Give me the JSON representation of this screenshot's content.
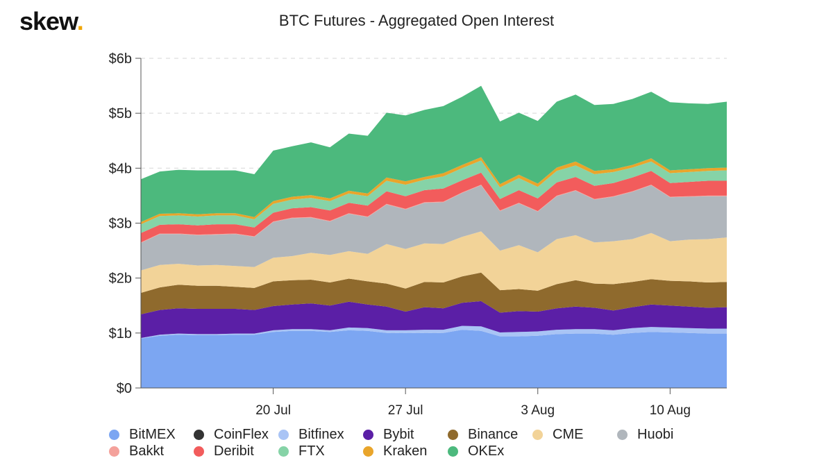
{
  "logo": {
    "text": "skew",
    "dot": "."
  },
  "chart_data": {
    "type": "area",
    "stacked": true,
    "title": "BTC Futures - Aggregated Open Interest",
    "xlabel": "",
    "ylabel": "",
    "ylim": [
      0,
      6
    ],
    "y_ticks": [
      "$0",
      "$1b",
      "$2b",
      "$3b",
      "$4b",
      "$5b",
      "$6b"
    ],
    "x_ticks": [
      {
        "label": "20 Jul",
        "index": 7
      },
      {
        "label": "27 Jul",
        "index": 14
      },
      {
        "label": "3 Aug",
        "index": 21
      },
      {
        "label": "10 Aug",
        "index": 28
      }
    ],
    "x": [
      "13 Jul",
      "14 Jul",
      "15 Jul",
      "16 Jul",
      "17 Jul",
      "18 Jul",
      "19 Jul",
      "20 Jul",
      "21 Jul",
      "22 Jul",
      "23 Jul",
      "24 Jul",
      "25 Jul",
      "26 Jul",
      "27 Jul",
      "28 Jul",
      "29 Jul",
      "30 Jul",
      "31 Jul",
      "1 Aug",
      "2 Aug",
      "3 Aug",
      "4 Aug",
      "5 Aug",
      "6 Aug",
      "7 Aug",
      "8 Aug",
      "9 Aug",
      "10 Aug",
      "11 Aug",
      "12 Aug",
      "13 Aug"
    ],
    "unit": "USD billions",
    "grid": true,
    "legend_position": "bottom",
    "series": [
      {
        "name": "BitMEX",
        "color": "#7ca6f2",
        "values": [
          0.9,
          0.95,
          0.97,
          0.96,
          0.96,
          0.97,
          0.97,
          1.02,
          1.04,
          1.04,
          1.02,
          1.05,
          1.04,
          1.0,
          1.0,
          1.0,
          1.0,
          1.06,
          1.04,
          0.94,
          0.94,
          0.95,
          0.98,
          0.99,
          0.99,
          0.97,
          1.0,
          1.02,
          1.01,
          1.0,
          0.99,
          0.99
        ]
      },
      {
        "name": "CoinFlex",
        "color": "#333333",
        "values": [
          0,
          0,
          0,
          0,
          0,
          0,
          0,
          0,
          0,
          0,
          0,
          0,
          0,
          0,
          0,
          0,
          0,
          0,
          0,
          0,
          0,
          0,
          0,
          0,
          0,
          0,
          0,
          0,
          0,
          0,
          0,
          0
        ]
      },
      {
        "name": "Bitfinex",
        "color": "#a9c4f5",
        "values": [
          0.01,
          0.02,
          0.02,
          0.02,
          0.02,
          0.02,
          0.02,
          0.03,
          0.03,
          0.03,
          0.03,
          0.05,
          0.05,
          0.05,
          0.05,
          0.06,
          0.06,
          0.07,
          0.08,
          0.07,
          0.08,
          0.08,
          0.08,
          0.08,
          0.08,
          0.08,
          0.09,
          0.09,
          0.09,
          0.09,
          0.09,
          0.09
        ]
      },
      {
        "name": "Bybit",
        "color": "#5b1fa6",
        "values": [
          0.43,
          0.45,
          0.46,
          0.46,
          0.46,
          0.45,
          0.43,
          0.44,
          0.45,
          0.47,
          0.45,
          0.47,
          0.43,
          0.43,
          0.34,
          0.41,
          0.39,
          0.42,
          0.46,
          0.36,
          0.38,
          0.36,
          0.39,
          0.41,
          0.39,
          0.36,
          0.38,
          0.41,
          0.4,
          0.39,
          0.38,
          0.39
        ]
      },
      {
        "name": "Binance",
        "color": "#8f6a2d",
        "values": [
          0.39,
          0.41,
          0.43,
          0.42,
          0.42,
          0.4,
          0.4,
          0.45,
          0.44,
          0.43,
          0.42,
          0.42,
          0.42,
          0.42,
          0.42,
          0.46,
          0.47,
          0.48,
          0.52,
          0.41,
          0.4,
          0.38,
          0.44,
          0.48,
          0.44,
          0.48,
          0.46,
          0.46,
          0.45,
          0.46,
          0.46,
          0.46
        ]
      },
      {
        "name": "CME",
        "color": "#f2d398",
        "values": [
          0.41,
          0.41,
          0.38,
          0.37,
          0.38,
          0.38,
          0.38,
          0.43,
          0.44,
          0.49,
          0.5,
          0.5,
          0.5,
          0.72,
          0.72,
          0.7,
          0.7,
          0.72,
          0.75,
          0.72,
          0.8,
          0.7,
          0.82,
          0.82,
          0.75,
          0.78,
          0.78,
          0.84,
          0.72,
          0.76,
          0.79,
          0.81
        ]
      },
      {
        "name": "Huobi",
        "color": "#b0b6bc",
        "values": [
          0.5,
          0.56,
          0.54,
          0.55,
          0.55,
          0.58,
          0.55,
          0.65,
          0.69,
          0.64,
          0.61,
          0.68,
          0.67,
          0.72,
          0.72,
          0.74,
          0.76,
          0.8,
          0.84,
          0.72,
          0.76,
          0.74,
          0.78,
          0.81,
          0.78,
          0.81,
          0.86,
          0.87,
          0.8,
          0.78,
          0.78,
          0.75
        ]
      },
      {
        "name": "Bakkt",
        "color": "#f4a19b",
        "values": [
          0.01,
          0.01,
          0.01,
          0.01,
          0.01,
          0.01,
          0.01,
          0.01,
          0.01,
          0.01,
          0.01,
          0.01,
          0.01,
          0.01,
          0.01,
          0.01,
          0.01,
          0.01,
          0.01,
          0.01,
          0.01,
          0.01,
          0.01,
          0.01,
          0.01,
          0.01,
          0.01,
          0.01,
          0.01,
          0.01,
          0.01,
          0.01
        ]
      },
      {
        "name": "Deribit",
        "color": "#f25c5c",
        "values": [
          0.17,
          0.16,
          0.17,
          0.17,
          0.18,
          0.17,
          0.16,
          0.16,
          0.17,
          0.18,
          0.19,
          0.19,
          0.2,
          0.23,
          0.23,
          0.22,
          0.24,
          0.22,
          0.22,
          0.21,
          0.23,
          0.23,
          0.24,
          0.24,
          0.24,
          0.24,
          0.25,
          0.25,
          0.25,
          0.26,
          0.27,
          0.27
        ]
      },
      {
        "name": "FTX",
        "color": "#86d3a7",
        "values": [
          0.16,
          0.16,
          0.16,
          0.16,
          0.16,
          0.16,
          0.15,
          0.16,
          0.16,
          0.17,
          0.17,
          0.17,
          0.17,
          0.19,
          0.21,
          0.19,
          0.22,
          0.22,
          0.22,
          0.21,
          0.22,
          0.21,
          0.21,
          0.21,
          0.21,
          0.2,
          0.18,
          0.17,
          0.18,
          0.18,
          0.18,
          0.19
        ]
      },
      {
        "name": "Kraken",
        "color": "#e9a52b",
        "values": [
          0.04,
          0.04,
          0.04,
          0.04,
          0.04,
          0.04,
          0.04,
          0.05,
          0.05,
          0.05,
          0.05,
          0.05,
          0.05,
          0.06,
          0.06,
          0.05,
          0.06,
          0.06,
          0.06,
          0.06,
          0.06,
          0.06,
          0.06,
          0.07,
          0.06,
          0.05,
          0.05,
          0.06,
          0.05,
          0.05,
          0.05,
          0.05
        ]
      },
      {
        "name": "OKEx",
        "color": "#4cb97d",
        "values": [
          0.78,
          0.77,
          0.79,
          0.8,
          0.78,
          0.78,
          0.78,
          0.92,
          0.92,
          0.96,
          0.93,
          1.04,
          1.05,
          1.18,
          1.2,
          1.22,
          1.22,
          1.24,
          1.3,
          1.14,
          1.13,
          1.14,
          1.2,
          1.22,
          1.2,
          1.19,
          1.2,
          1.21,
          1.24,
          1.2,
          1.17,
          1.2
        ]
      }
    ]
  }
}
